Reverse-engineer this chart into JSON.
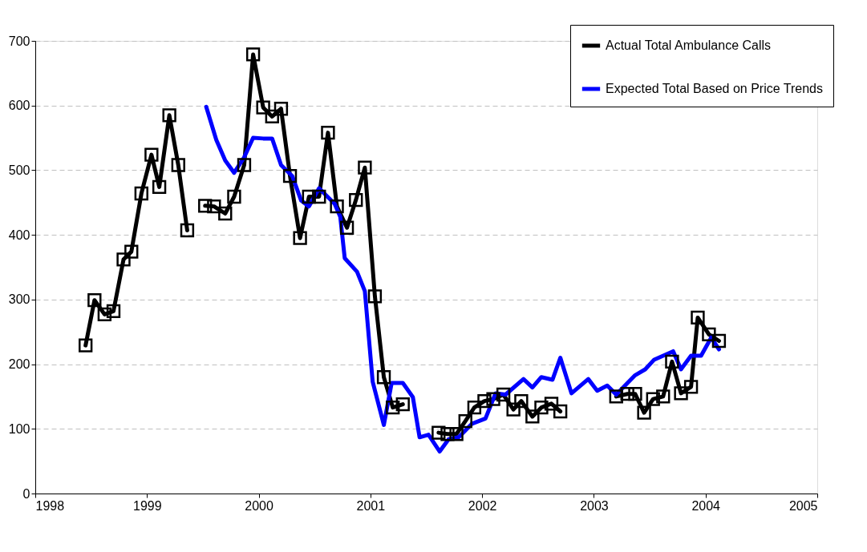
{
  "chart_data": {
    "type": "line",
    "legend": "top right",
    "grid": "y",
    "xlim": [
      1998,
      2005
    ],
    "xticks": [
      1998,
      1999,
      2000,
      2001,
      2002,
      2003,
      2004,
      2005
    ],
    "ylim": [
      0,
      700
    ],
    "yticks": [
      0,
      100,
      200,
      300,
      400,
      500,
      600,
      700
    ],
    "series": [
      {
        "name": "Actual Total Ambulance Calls",
        "color": "#000000",
        "marker": "square",
        "x": [
          1998.45,
          1998.53,
          1998.62,
          1998.7,
          1998.79,
          1998.86,
          1998.95,
          1999.04,
          1999.11,
          1999.2,
          1999.28,
          1999.36,
          1999.44,
          1999.52,
          1999.6,
          1999.7,
          1999.78,
          1999.87,
          1999.95,
          2000.04,
          2000.12,
          2000.2,
          2000.28,
          2000.37,
          2000.45,
          2000.54,
          2000.62,
          2000.7,
          2000.79,
          2000.87,
          2000.95,
          2001.04,
          2001.12,
          2001.2,
          2001.29,
          2001.45,
          2001.61,
          2001.69,
          2001.77,
          2001.85,
          2001.93,
          2002.02,
          2002.1,
          2002.19,
          2002.28,
          2002.35,
          2002.45,
          2002.53,
          2002.62,
          2002.7,
          2002.95,
          2003.2,
          2003.3,
          2003.37,
          2003.45,
          2003.53,
          2003.62,
          2003.7,
          2003.78,
          2003.87,
          2003.93,
          2004.03,
          2004.12
        ],
        "values": [
          229,
          299,
          277,
          282,
          362,
          374,
          464,
          524,
          474,
          585,
          508,
          407,
          null,
          445,
          444,
          433,
          459,
          508,
          679,
          597,
          583,
          595,
          491,
          395,
          459,
          459,
          558,
          444,
          411,
          454,
          504,
          305,
          180,
          133,
          138,
          null,
          94,
          92,
          92,
          112,
          133,
          143,
          146,
          153,
          130,
          143,
          119,
          133,
          139,
          127,
          null,
          150,
          154,
          154,
          125,
          146,
          150,
          204,
          155,
          165,
          272,
          246,
          236
        ]
      },
      {
        "name": "Expected Total Based on Price Trends",
        "color": "#0000ff",
        "marker": "none",
        "x": [
          1999.53,
          1999.62,
          1999.7,
          1999.78,
          1999.87,
          1999.95,
          2000.04,
          2000.12,
          2000.2,
          2000.3,
          2000.38,
          2000.45,
          2000.54,
          2000.68,
          2000.73,
          2000.77,
          2000.88,
          2000.95,
          2001.02,
          2001.12,
          2001.19,
          2001.29,
          2001.38,
          2001.44,
          2001.52,
          2001.62,
          2001.7,
          2001.79,
          2001.91,
          2002.03,
          2002.12,
          2002.21,
          2002.37,
          2002.45,
          2002.53,
          2002.63,
          2002.7,
          2002.8,
          2002.95,
          2003.03,
          2003.12,
          2003.2,
          2003.37,
          2003.46,
          2003.54,
          2003.71,
          2003.78,
          2003.87,
          2003.96,
          2004.05,
          2004.12
        ],
        "values": [
          598,
          547,
          515,
          496,
          520,
          550,
          549,
          549,
          508,
          491,
          453,
          444,
          472,
          448,
          428,
          364,
          343,
          313,
          173,
          106,
          171,
          171,
          149,
          87,
          91,
          65,
          84,
          87,
          108,
          116,
          155,
          153,
          177,
          164,
          180,
          176,
          210,
          155,
          177,
          159,
          167,
          153,
          183,
          192,
          207,
          220,
          192,
          213,
          213,
          241,
          223
        ]
      }
    ]
  }
}
